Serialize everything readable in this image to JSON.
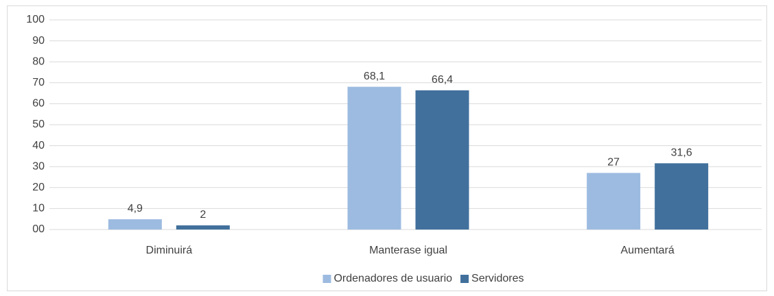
{
  "chart_data": {
    "type": "bar",
    "categories": [
      "Diminuirá",
      "Manterase igual",
      "Aumentará"
    ],
    "series": [
      {
        "name": "Ordenadores de usuario",
        "color": "#9dbbe0",
        "values": [
          4.9,
          68.1,
          27
        ],
        "value_labels": [
          "4,9",
          "68,1",
          "27"
        ]
      },
      {
        "name": "Servidores",
        "color": "#41709c",
        "values": [
          2,
          66.4,
          31.6
        ],
        "value_labels": [
          "2",
          "66,4",
          "31,6"
        ]
      }
    ],
    "ylim": [
      0,
      100
    ],
    "yticks": [
      {
        "value": 0,
        "label": "00"
      },
      10,
      20,
      30,
      40,
      50,
      60,
      70,
      80,
      90,
      100
    ],
    "grid": true,
    "legend": "bottom"
  }
}
